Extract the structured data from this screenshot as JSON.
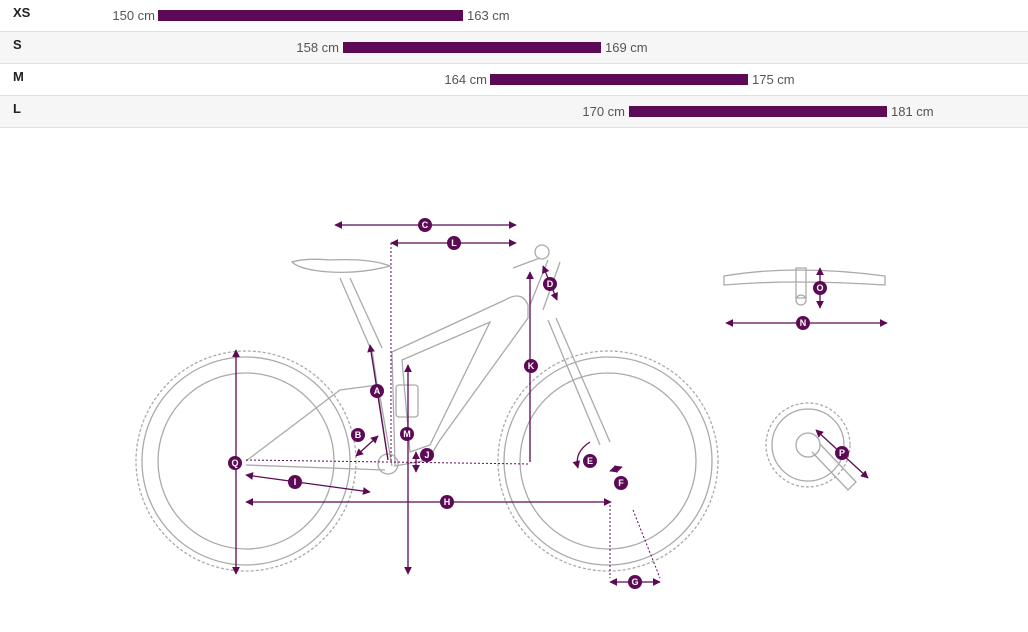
{
  "colors": {
    "accent": "#5c0a55",
    "outline": "#aaaaaa"
  },
  "sizes": [
    {
      "label": "XS",
      "min": "150 cm",
      "max": "163 cm"
    },
    {
      "label": "S",
      "min": "158 cm",
      "max": "169 cm"
    },
    {
      "label": "M",
      "min": "164 cm",
      "max": "175 cm"
    },
    {
      "label": "L",
      "min": "170 cm",
      "max": "181 cm"
    }
  ],
  "markers": {
    "A": "A",
    "B": "B",
    "C": "C",
    "D": "D",
    "E": "E",
    "F": "F",
    "G": "G",
    "H": "H",
    "I": "I",
    "J": "J",
    "K": "K",
    "L": "L",
    "M": "M",
    "N": "N",
    "O": "O",
    "P": "P",
    "Q": "Q"
  }
}
